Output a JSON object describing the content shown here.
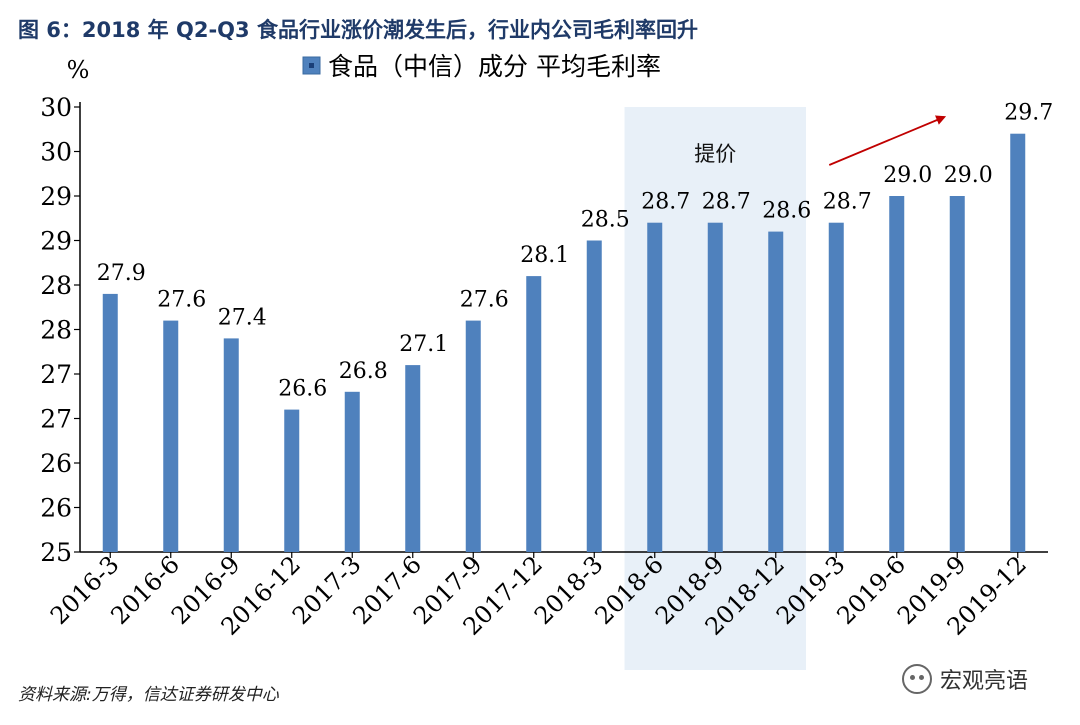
{
  "figure": {
    "title": "图 6：2018 年 Q2-Q3 食品行业涨价潮发生后，行业内公司毛利率回升",
    "source": "资料来源:万得，信达证券研发中心",
    "watermark": "宏观亮语"
  },
  "chart_data": {
    "type": "bar",
    "title": "",
    "xlabel": "",
    "ylabel": "%",
    "legend": {
      "position": "top",
      "marker_label": "食品（中信）成分 平均毛利率"
    },
    "categories": [
      "2016-3",
      "2016-6",
      "2016-9",
      "2016-12",
      "2017-3",
      "2017-6",
      "2017-9",
      "2017-12",
      "2018-3",
      "2018-6",
      "2018-9",
      "2018-12",
      "2019-3",
      "2019-6",
      "2019-9",
      "2019-12"
    ],
    "series": [
      {
        "name": "食品（中信）成分 平均毛利率",
        "values": [
          27.9,
          27.6,
          27.4,
          26.6,
          26.8,
          27.1,
          27.6,
          28.1,
          28.5,
          28.7,
          28.7,
          28.6,
          28.7,
          29.0,
          29.0,
          29.7
        ],
        "labels": [
          "27.9",
          "27.6",
          "27.4",
          "26.6",
          "26.8",
          "27.1",
          "27.6",
          "28.1",
          "28.5",
          "28.7",
          "28.7",
          "28.6",
          "28.7",
          "29.0",
          "29.0",
          "29.7"
        ]
      }
    ],
    "ylim": [
      25.0,
      30.0
    ],
    "yticks": [
      25.0,
      25.5,
      26.0,
      26.5,
      27.0,
      27.5,
      28.0,
      28.5,
      29.0,
      29.5,
      30.0
    ],
    "ytick_labels": [
      "25",
      "26",
      "26",
      "27",
      "27",
      "28",
      "28",
      "29",
      "29",
      "30",
      "30"
    ],
    "annotations": [
      {
        "text": "提价",
        "span": [
          "2018-6",
          "2018-12"
        ],
        "shade_color": "#e8f0f8"
      },
      {
        "type": "arrow",
        "from": "2019-3",
        "to": "2019-9",
        "color": "#c00000"
      }
    ],
    "bar_color": "#4f81bd",
    "grid": false
  }
}
